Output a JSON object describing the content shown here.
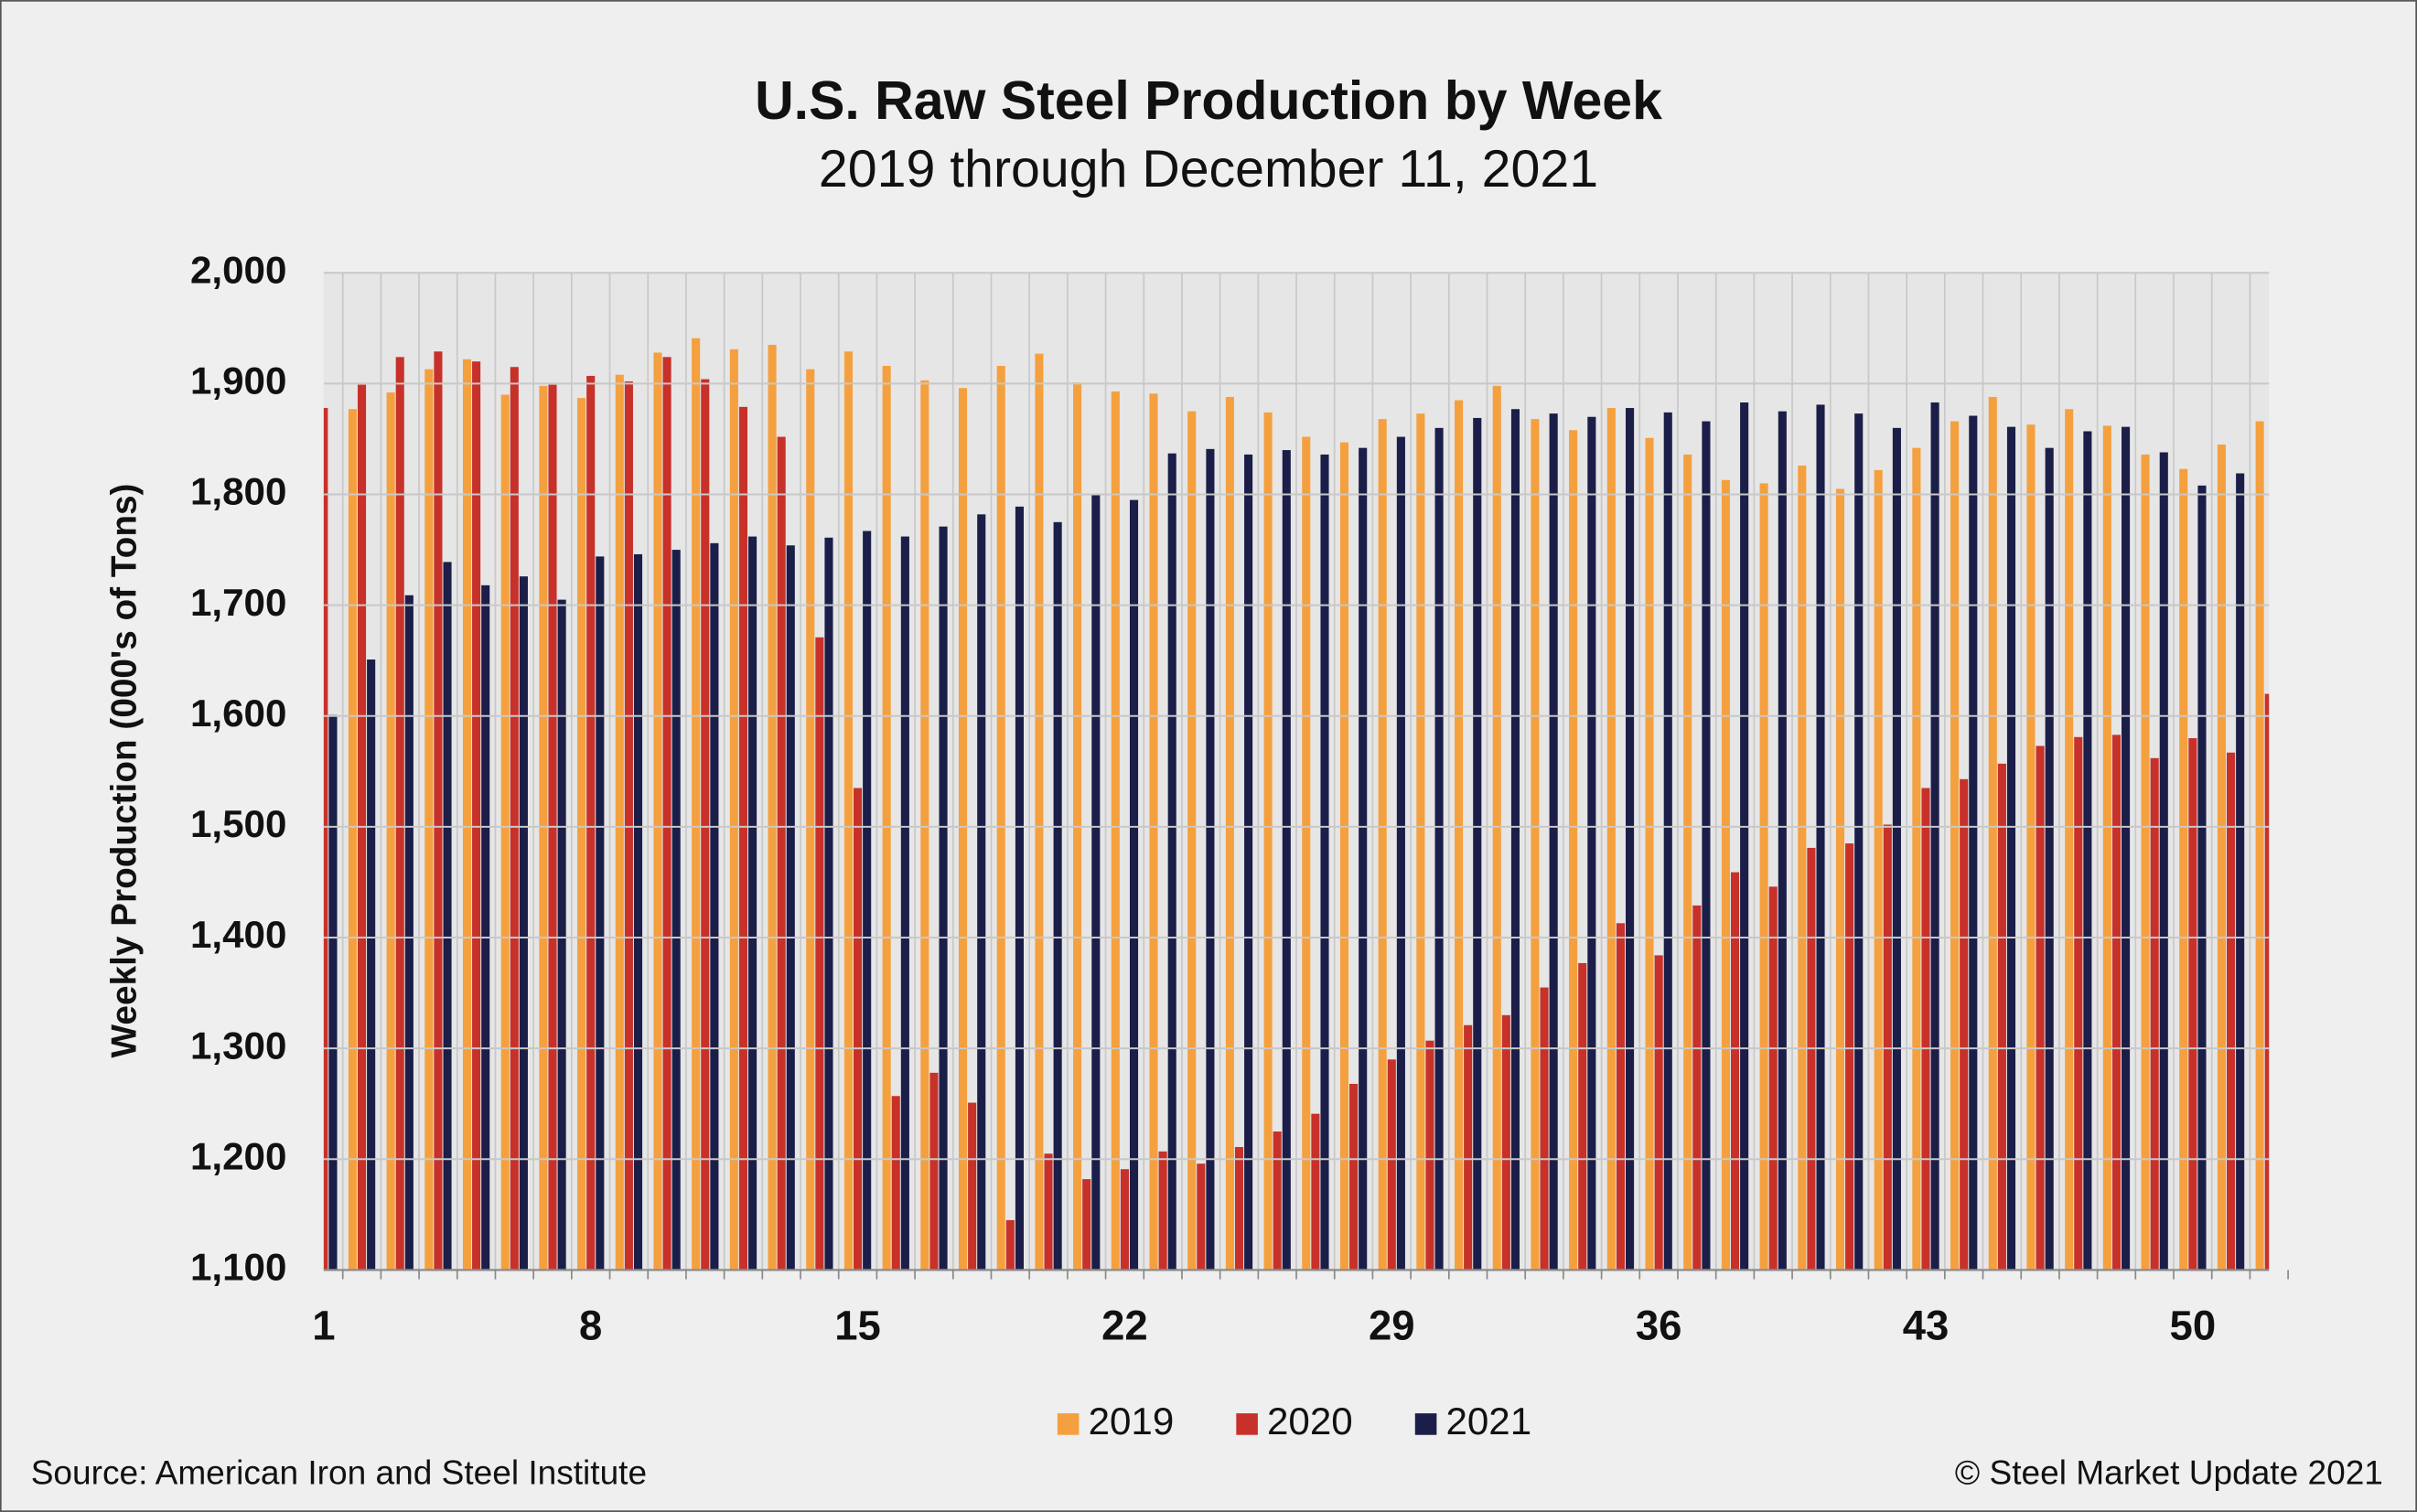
{
  "chart_data": {
    "type": "bar",
    "title": "U.S. Raw Steel Production by Week",
    "subtitle": "2019 through December 11, 2021",
    "y_label": "Weekly Production (000's of Tons)",
    "source": "Source: American Iron and Steel Institute",
    "copyright": "© Steel Market Update 2021",
    "categories": [
      "1",
      null,
      null,
      null,
      null,
      null,
      null,
      "8",
      null,
      null,
      null,
      null,
      null,
      null,
      "15",
      null,
      null,
      null,
      null,
      null,
      null,
      "22",
      null,
      null,
      null,
      null,
      null,
      null,
      "29",
      null,
      null,
      null,
      null,
      null,
      null,
      "36",
      null,
      null,
      null,
      null,
      null,
      null,
      "43",
      null,
      null,
      null,
      null,
      null,
      null,
      "50",
      null,
      null
    ],
    "series": [
      {
        "name": "2019",
        "color": "#f5a03f",
        "values": [
          null,
          1877,
          1892,
          1913,
          1922,
          1890,
          1898,
          1887,
          1908,
          1928,
          1941,
          1931,
          1935,
          1913,
          1929,
          1916,
          1903,
          1896,
          1916,
          1927,
          1901,
          1893,
          1891,
          1875,
          1888,
          1874,
          1852,
          1847,
          1868,
          1873,
          1885,
          1898,
          1868,
          1858,
          1878,
          1851,
          1836,
          1813,
          1810,
          1826,
          1805,
          1822,
          1842,
          1866,
          1888,
          1863,
          1877,
          1862,
          1836,
          1823,
          1845,
          1866
        ]
      },
      {
        "name": "2020",
        "color": "#c7312a",
        "values": [
          1878,
          1899,
          1924,
          1929,
          1920,
          1915,
          1899,
          1907,
          1902,
          1924,
          1904,
          1879,
          1852,
          1671,
          1535,
          1257,
          1278,
          1251,
          1145,
          1205,
          1182,
          1191,
          1207,
          1196,
          1211,
          1225,
          1241,
          1268,
          1290,
          1307,
          1321,
          1330,
          1355,
          1377,
          1413,
          1384,
          1429,
          1459,
          1446,
          1481,
          1485,
          1502,
          1535,
          1543,
          1557,
          1573,
          1581,
          1583,
          1562,
          1580,
          1567,
          1620
        ]
      },
      {
        "name": "2021",
        "color": "#1b1e48",
        "values": [
          1601,
          1651,
          1709,
          1739,
          1718,
          1726,
          1705,
          1744,
          1746,
          1750,
          1756,
          1762,
          1754,
          1761,
          1767,
          1762,
          1771,
          1782,
          1789,
          1775,
          1800,
          1795,
          1837,
          1841,
          1836,
          1840,
          1836,
          1842,
          1852,
          1860,
          1869,
          1877,
          1873,
          1870,
          1878,
          1874,
          1866,
          1883,
          1875,
          1881,
          1873,
          1860,
          1883,
          1871,
          1861,
          1842,
          1857,
          1861,
          1838,
          1808,
          1819,
          null
        ]
      }
    ],
    "ylim": [
      1100,
      2000
    ],
    "yticks": [
      {
        "value": 1100,
        "label": "1,100"
      },
      {
        "value": 1200,
        "label": "1,200"
      },
      {
        "value": 1300,
        "label": "1,300"
      },
      {
        "value": 1400,
        "label": "1,400"
      },
      {
        "value": 1500,
        "label": "1,500"
      },
      {
        "value": 1600,
        "label": "1,600"
      },
      {
        "value": 1700,
        "label": "1,700"
      },
      {
        "value": 1800,
        "label": "1,800"
      },
      {
        "value": 1900,
        "label": "1,900"
      },
      {
        "value": 2000,
        "label": "2,000"
      }
    ],
    "grid": true,
    "legend": "bottom"
  }
}
